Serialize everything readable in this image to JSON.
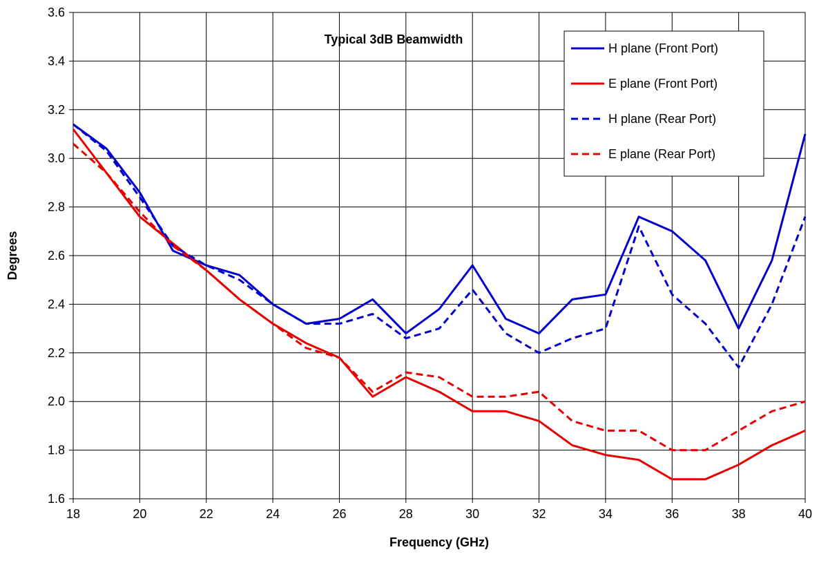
{
  "chart_data": {
    "type": "line",
    "title": "Typical 3dB Beamwidth",
    "xlabel": "Frequency (GHz)",
    "ylabel": "Degrees",
    "xlim": [
      18,
      40
    ],
    "ylim": [
      1.6,
      3.6
    ],
    "xticks": [
      "18",
      "20",
      "22",
      "24",
      "26",
      "28",
      "30",
      "32",
      "34",
      "36",
      "38",
      "40"
    ],
    "yticks": [
      "1.6",
      "1.8",
      "2.0",
      "2.2",
      "2.4",
      "2.6",
      "2.8",
      "3.0",
      "3.2",
      "3.4",
      "3.6"
    ],
    "grid": true,
    "legend_position": "top-right",
    "x": [
      18,
      19,
      20,
      21,
      22,
      23,
      24,
      25,
      26,
      27,
      28,
      29,
      30,
      31,
      32,
      33,
      34,
      35,
      36,
      37,
      38,
      39,
      40
    ],
    "series": [
      {
        "name": "H plane (Front Port)",
        "color": "#0000cc",
        "dash": "solid",
        "values": [
          3.14,
          3.04,
          2.86,
          2.62,
          2.56,
          2.52,
          2.4,
          2.32,
          2.34,
          2.42,
          2.28,
          2.38,
          2.56,
          2.34,
          2.28,
          2.42,
          2.44,
          2.76,
          2.7,
          2.58,
          2.3,
          2.58,
          3.1
        ]
      },
      {
        "name": "E plane (Front Port)",
        "color": "#e60000",
        "dash": "solid",
        "values": [
          3.12,
          2.94,
          2.76,
          2.65,
          2.54,
          2.42,
          2.32,
          2.24,
          2.18,
          2.02,
          2.1,
          2.04,
          1.96,
          1.96,
          1.92,
          1.82,
          1.78,
          1.76,
          1.68,
          1.68,
          1.74,
          1.82,
          1.88
        ]
      },
      {
        "name": "H plane (Rear Port)",
        "color": "#0000cc",
        "dash": "dashed",
        "values": [
          3.14,
          3.03,
          2.84,
          2.64,
          2.56,
          2.5,
          2.4,
          2.32,
          2.32,
          2.36,
          2.26,
          2.3,
          2.46,
          2.28,
          2.2,
          2.26,
          2.3,
          2.72,
          2.44,
          2.32,
          2.14,
          2.4,
          2.76
        ]
      },
      {
        "name": "E plane (Rear Port)",
        "color": "#e60000",
        "dash": "dashed",
        "values": [
          3.06,
          2.94,
          2.78,
          2.64,
          2.54,
          2.42,
          2.32,
          2.22,
          2.18,
          2.04,
          2.12,
          2.1,
          2.02,
          2.02,
          2.04,
          1.92,
          1.88,
          1.88,
          1.8,
          1.8,
          1.88,
          1.96,
          2.0
        ]
      }
    ]
  }
}
